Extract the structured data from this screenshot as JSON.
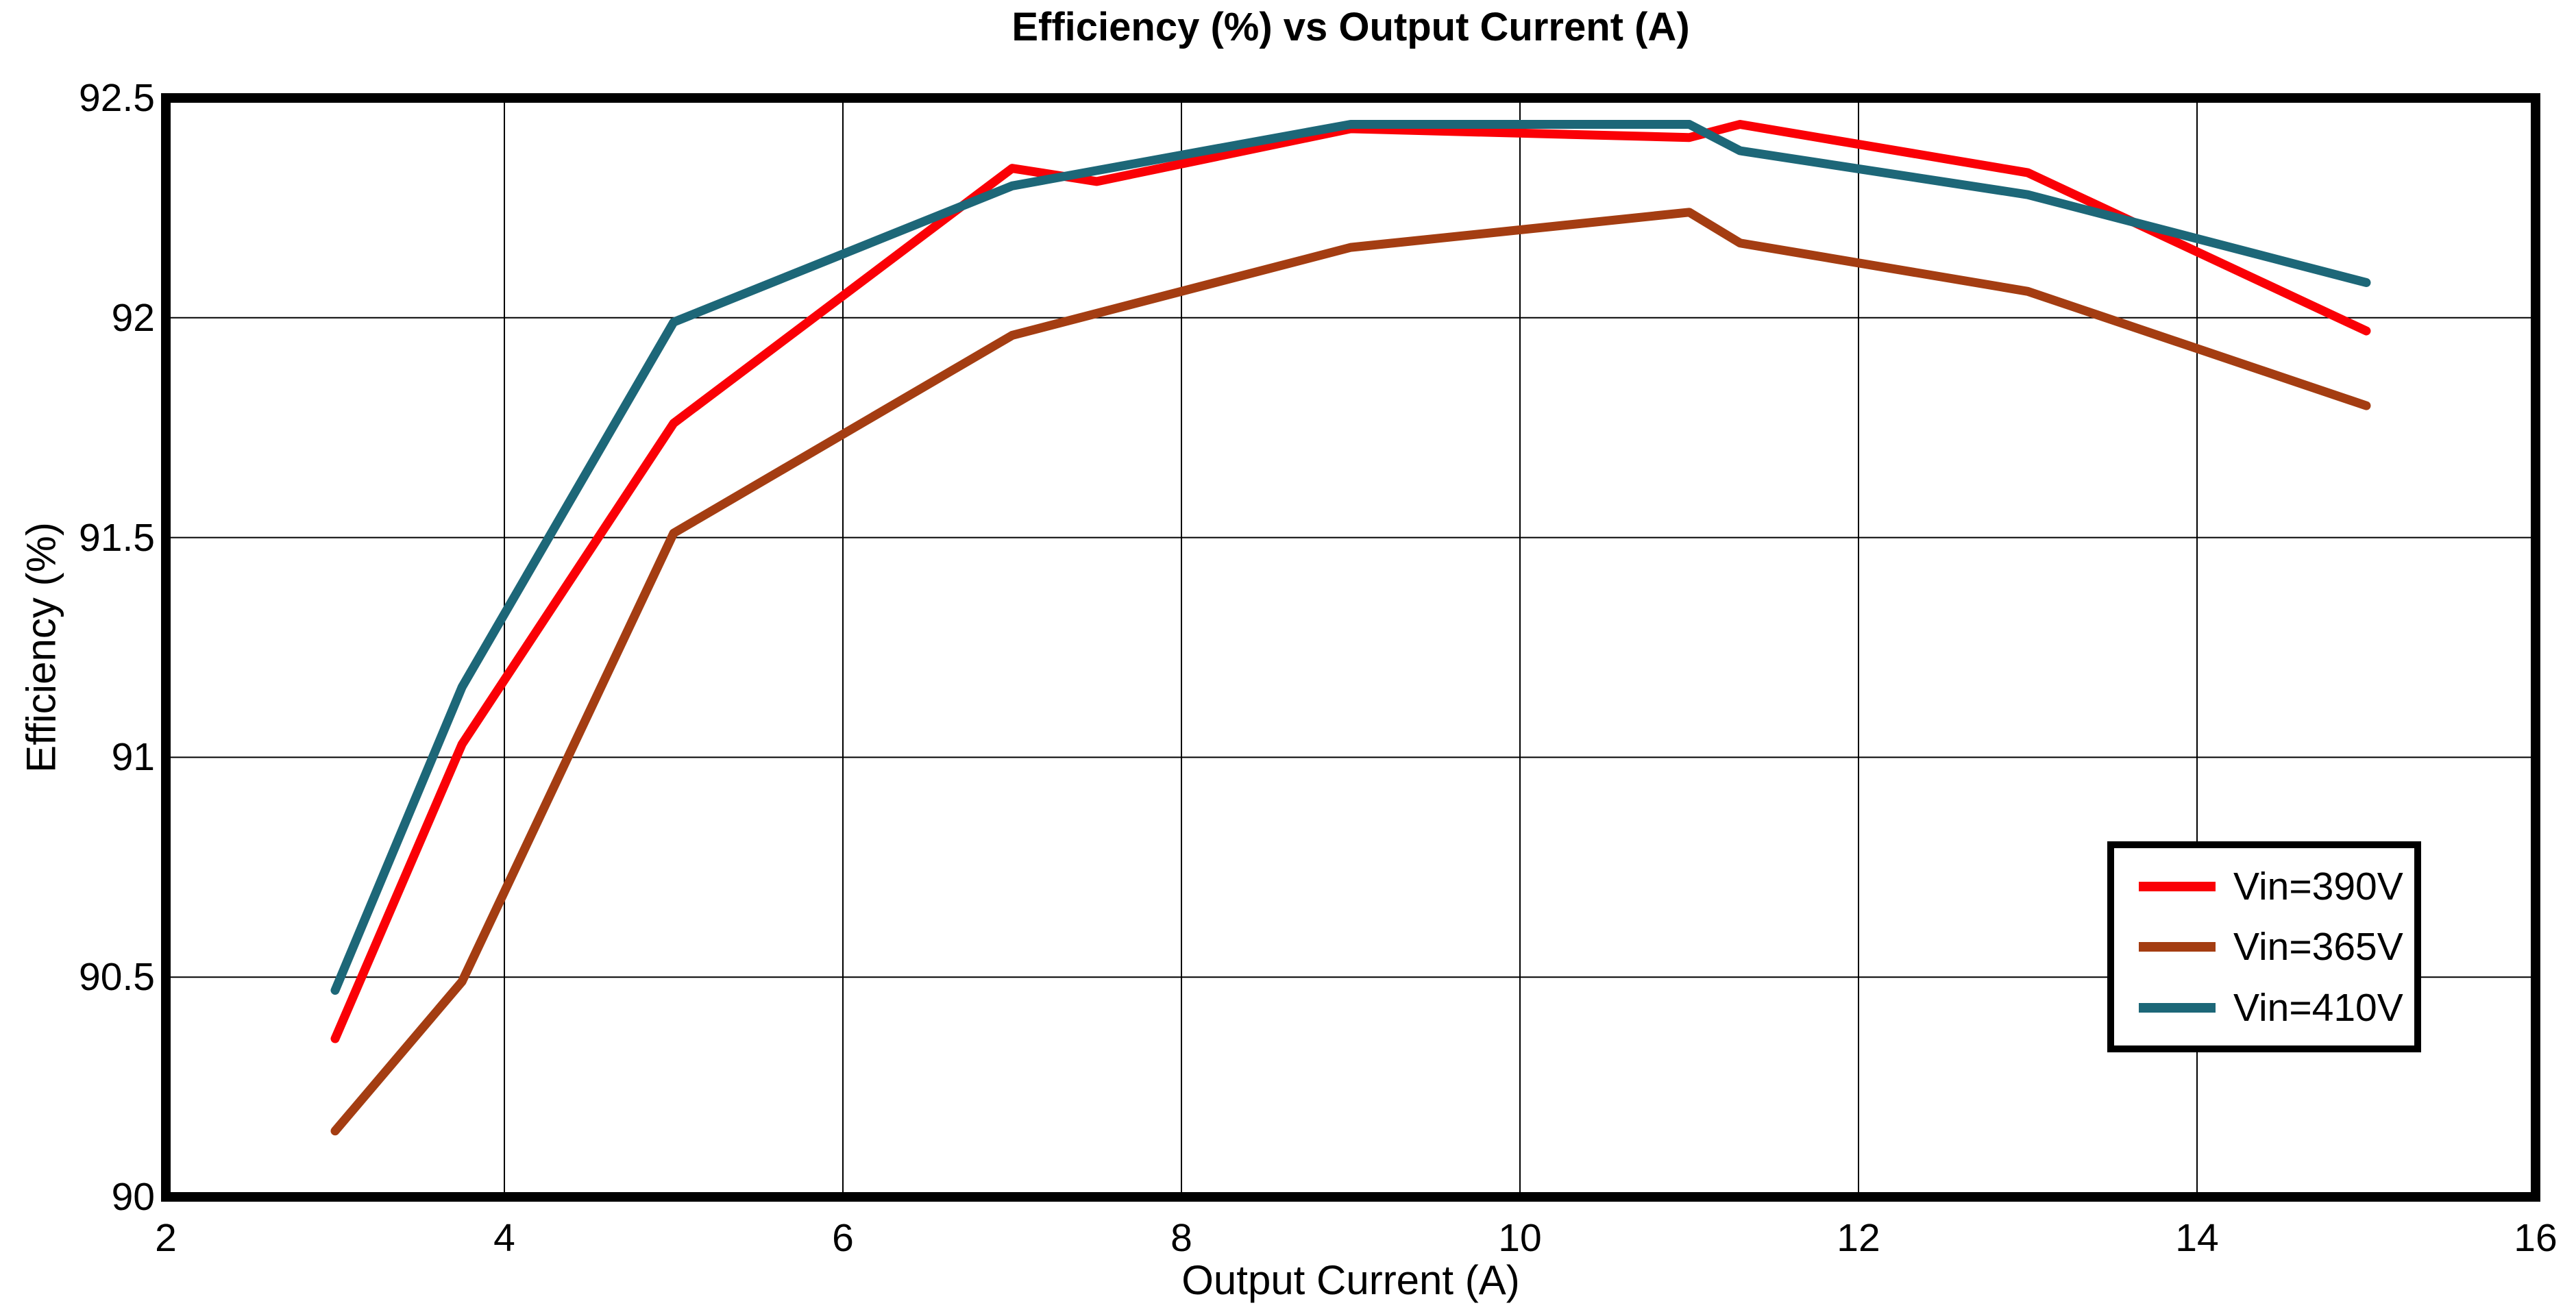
{
  "chart_data": {
    "type": "line",
    "title": "Efficiency (%) vs Output Current (A)",
    "xlabel": "Output Current (A)",
    "ylabel": "Efficiency (%)",
    "xlim": [
      2,
      16
    ],
    "ylim": [
      90,
      92.5
    ],
    "x_ticks": [
      2,
      4,
      6,
      8,
      10,
      12,
      14,
      16
    ],
    "y_ticks": [
      90,
      90.5,
      91,
      91.5,
      92,
      92.5
    ],
    "grid": true,
    "grid_color": "#000000",
    "frame_color": "#000000",
    "background_color": "#ffffff",
    "legend_position": "lower right",
    "line_width": 13,
    "series": [
      {
        "name": "Vin=390V",
        "color": "#fa0006",
        "points": [
          [
            3,
            90.36
          ],
          [
            3.75,
            91.03
          ],
          [
            5,
            91.76
          ],
          [
            7,
            92.34
          ],
          [
            7.5,
            92.31
          ],
          [
            9,
            92.43
          ],
          [
            11,
            92.41
          ],
          [
            11.3,
            92.44
          ],
          [
            13,
            92.33
          ],
          [
            15,
            91.97
          ]
        ]
      },
      {
        "name": "Vin=365V",
        "color": "#a43d12",
        "points": [
          [
            3,
            90.15
          ],
          [
            3.75,
            90.49
          ],
          [
            5,
            91.51
          ],
          [
            7,
            91.96
          ],
          [
            9,
            92.16
          ],
          [
            11,
            92.24
          ],
          [
            11.3,
            92.17
          ],
          [
            13,
            92.06
          ],
          [
            15,
            91.8
          ]
        ]
      },
      {
        "name": "Vin=410V",
        "color": "#1d6778",
        "points": [
          [
            3,
            90.47
          ],
          [
            3.75,
            91.16
          ],
          [
            5,
            91.99
          ],
          [
            7,
            92.3
          ],
          [
            9,
            92.44
          ],
          [
            11,
            92.44
          ],
          [
            11.3,
            92.38
          ],
          [
            13,
            92.28
          ],
          [
            15,
            92.08
          ]
        ]
      }
    ]
  }
}
